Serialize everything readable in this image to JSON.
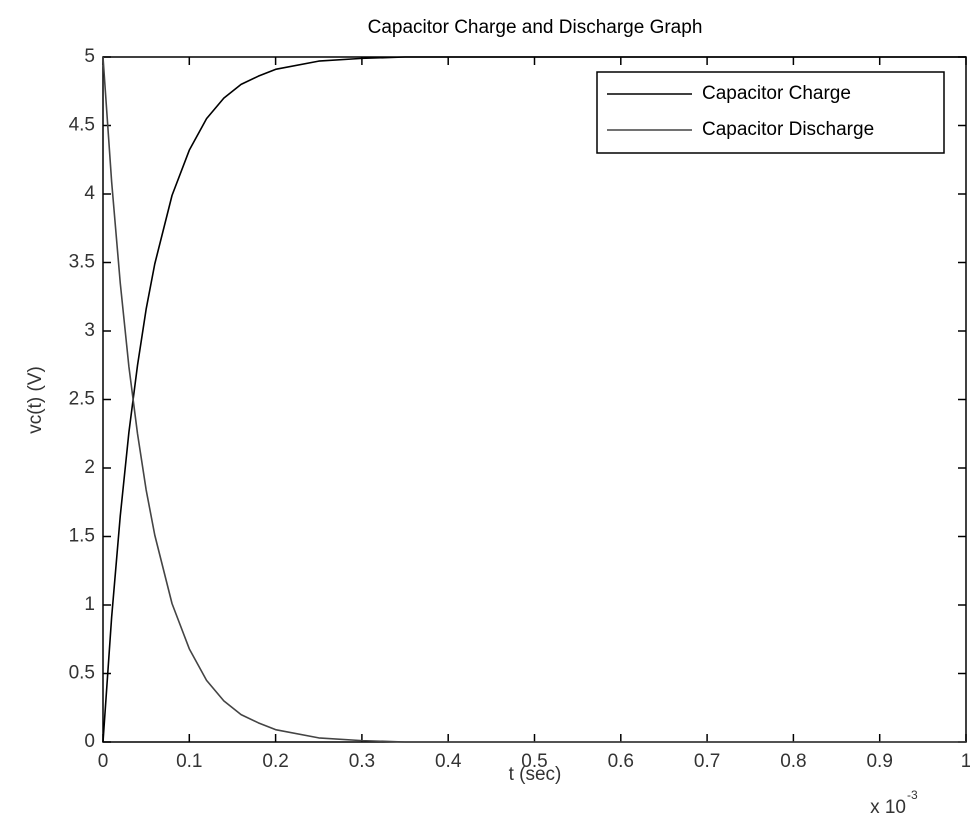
{
  "chart_data": {
    "type": "line",
    "title": "Capacitor Charge and Discharge Graph",
    "x_label": "t (sec)",
    "y_label": "vc(t) (V)",
    "x_multiplier": "x 10",
    "x_multiplier_exponent": "-3",
    "x": [
      0,
      0.01,
      0.02,
      0.03,
      0.04,
      0.05,
      0.06,
      0.08,
      0.1,
      0.12,
      0.14,
      0.16,
      0.18,
      0.2,
      0.25,
      0.3,
      0.35,
      0.4,
      0.5,
      0.6,
      0.7,
      0.8,
      0.9,
      1
    ],
    "series": [
      {
        "name": "Capacitor Charge",
        "color": "#000000",
        "values": [
          0,
          0.91,
          1.65,
          2.26,
          2.75,
          3.16,
          3.49,
          3.99,
          4.32,
          4.55,
          4.7,
          4.8,
          4.86,
          4.91,
          4.97,
          4.99,
          5,
          5,
          5,
          5,
          5,
          5,
          5,
          5
        ]
      },
      {
        "name": "Capacitor Discharge",
        "color": "#444444",
        "values": [
          5,
          4.09,
          3.35,
          2.74,
          2.25,
          1.84,
          1.51,
          1.01,
          0.68,
          0.45,
          0.3,
          0.2,
          0.14,
          0.09,
          0.03,
          0.01,
          0,
          0,
          0,
          0,
          0,
          0,
          0,
          0
        ]
      }
    ],
    "xlim": [
      0,
      1
    ],
    "xticks": [
      0,
      0.1,
      0.2,
      0.3,
      0.4,
      0.5,
      0.6,
      0.7,
      0.8,
      0.9,
      1
    ],
    "ylim": [
      0,
      5
    ],
    "yticks": [
      0,
      0.5,
      1,
      1.5,
      2,
      2.5,
      3,
      3.5,
      4,
      4.5,
      5
    ],
    "grid": false,
    "legend": "top-right"
  }
}
